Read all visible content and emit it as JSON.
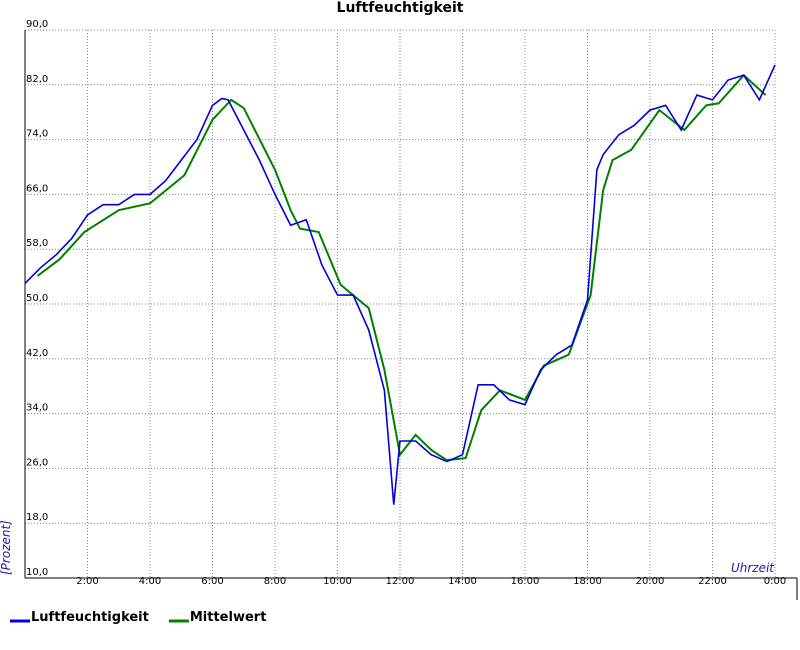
{
  "chart_data": {
    "type": "line",
    "title": "Luftfeuchtigkeit",
    "y_label": "[Prozent]",
    "x_label": "Uhrzeit",
    "xlim": [
      0,
      24
    ],
    "xticks": [
      {
        "value": 2,
        "label": "2:00"
      },
      {
        "value": 4,
        "label": "4:00"
      },
      {
        "value": 6,
        "label": "6:00"
      },
      {
        "value": 8,
        "label": "8:00"
      },
      {
        "value": 10,
        "label": "10:00"
      },
      {
        "value": 12,
        "label": "12:00"
      },
      {
        "value": 14,
        "label": "14:00"
      },
      {
        "value": 16,
        "label": "16:00"
      },
      {
        "value": 18,
        "label": "18:00"
      },
      {
        "value": 20,
        "label": "20:00"
      },
      {
        "value": 22,
        "label": "22:00"
      },
      {
        "value": 24,
        "label": "0:00"
      }
    ],
    "ylim": [
      10,
      90
    ],
    "yticks": [
      {
        "value": 10,
        "label": "10,0"
      },
      {
        "value": 18,
        "label": "18,0"
      },
      {
        "value": 26,
        "label": "26,0"
      },
      {
        "value": 34,
        "label": "34,0"
      },
      {
        "value": 42,
        "label": "42,0"
      },
      {
        "value": 50,
        "label": "50,0"
      },
      {
        "value": 58,
        "label": "58,0"
      },
      {
        "value": 66,
        "label": "66,0"
      },
      {
        "value": 74,
        "label": "74,0"
      },
      {
        "value": 82,
        "label": "82,0"
      },
      {
        "value": 90,
        "label": "90,0"
      }
    ],
    "grid": true,
    "series": [
      {
        "name": "Luftfeuchtigkeit",
        "color": "#0000dd",
        "x": [
          0,
          0.5,
          1,
          1.5,
          2,
          2.5,
          3,
          3.5,
          4,
          4.5,
          5,
          5.5,
          6,
          6.3,
          6.5,
          7,
          7.5,
          8,
          8.5,
          9,
          9.5,
          10,
          10.5,
          11,
          11.5,
          11.8,
          12,
          12.5,
          13,
          13.5,
          14,
          14.5,
          15,
          15.5,
          16,
          16.5,
          17,
          17.5,
          18,
          18.3,
          18.5,
          19,
          19.5,
          20,
          20.5,
          21,
          21.5,
          22,
          22.5,
          23,
          23.5,
          24
        ],
        "values": [
          53,
          55.3,
          57.2,
          59.6,
          63,
          64.5,
          64.5,
          66,
          66,
          68,
          71,
          74,
          79,
          80,
          79.8,
          75.4,
          71,
          66,
          61.5,
          62.3,
          55.7,
          51.3,
          51.3,
          46.2,
          37.4,
          20.7,
          30,
          30,
          28,
          27,
          28,
          38.2,
          38.2,
          36,
          35.3,
          40.4,
          42.6,
          44,
          50.6,
          69.6,
          71.8,
          74.7,
          76.1,
          78.3,
          79,
          75.4,
          80.5,
          79.8,
          82.7,
          83.4,
          79.8,
          84.9
        ]
      },
      {
        "name": "Mittelwert",
        "color": "#008000",
        "x": [
          0.4,
          1.1,
          1.9,
          3,
          4,
          5.1,
          6,
          6.6,
          7,
          8,
          8.5,
          8.8,
          9.4,
          10.1,
          11,
          11.5,
          12,
          12.5,
          13,
          13.5,
          14.1,
          14.6,
          15.2,
          16,
          16.6,
          17.4,
          18.1,
          18.5,
          18.8,
          19.4,
          20.3,
          21.1,
          21.8,
          22.2,
          23,
          23.7
        ],
        "values": [
          54.1,
          56.5,
          60.5,
          63.7,
          64.7,
          68.8,
          76.9,
          79.8,
          78.6,
          69.6,
          63.7,
          61,
          60.5,
          52.8,
          49.4,
          40.4,
          28,
          30.9,
          28.7,
          27.2,
          27.5,
          34.5,
          37.4,
          36,
          41,
          42.6,
          51.3,
          66.6,
          71,
          72.5,
          78.3,
          75.4,
          79,
          79.3,
          83.4,
          80.5
        ]
      }
    ]
  }
}
